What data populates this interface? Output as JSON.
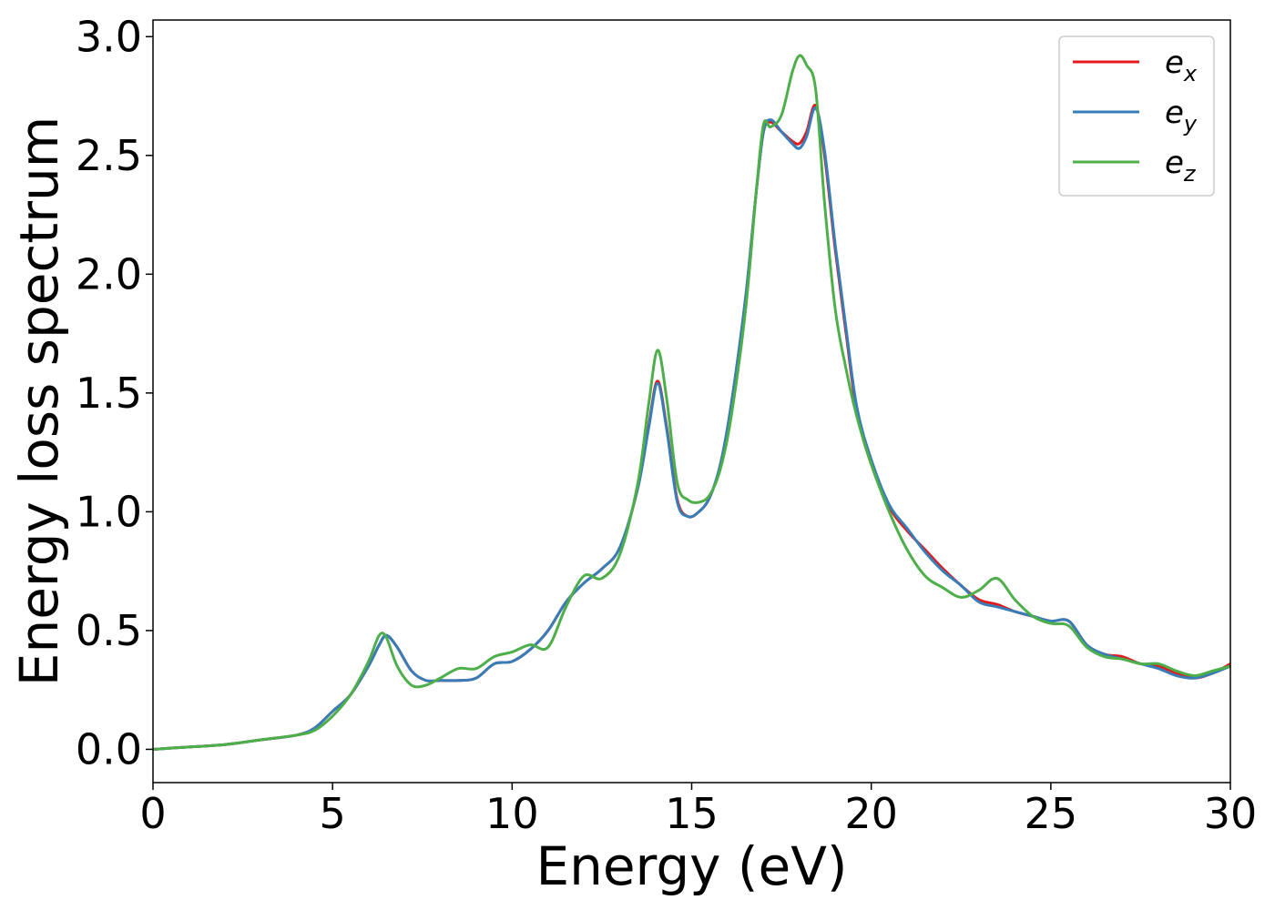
{
  "chart_data": {
    "type": "line",
    "title": "",
    "xlabel": "Energy (eV)",
    "ylabel": "Energy loss spectrum",
    "xlim": [
      0,
      30
    ],
    "ylim": [
      -0.14,
      3.07
    ],
    "xticks": [
      0,
      5,
      10,
      15,
      20,
      25,
      30
    ],
    "yticks": [
      0.0,
      0.5,
      1.0,
      1.5,
      2.0,
      2.5,
      3.0
    ],
    "xtick_labels": [
      "0",
      "5",
      "10",
      "15",
      "20",
      "25",
      "30"
    ],
    "ytick_labels": [
      "0.0",
      "0.5",
      "1.0",
      "1.5",
      "2.0",
      "2.5",
      "3.0"
    ],
    "grid": false,
    "legend_position": "top-right",
    "series": [
      {
        "name": "e_x",
        "legend_base": "e",
        "legend_sub": "x",
        "color": "#e41a1c",
        "x": [
          0,
          1,
          2,
          3,
          4,
          4.5,
          5,
          5.5,
          6,
          6.3,
          6.5,
          6.8,
          7.2,
          7.6,
          8,
          8.5,
          9,
          9.5,
          10,
          10.5,
          11,
          11.5,
          12,
          12.5,
          13,
          13.5,
          13.8,
          14.05,
          14.3,
          14.6,
          14.9,
          15.2,
          15.5,
          15.8,
          16.1,
          16.5,
          16.8,
          17.0,
          17.2,
          17.5,
          17.8,
          18.0,
          18.2,
          18.45,
          18.7,
          19.0,
          19.3,
          19.6,
          20,
          20.5,
          21,
          21.5,
          22,
          22.5,
          23,
          23.5,
          24,
          24.5,
          25,
          25.5,
          26,
          26.5,
          27,
          27.5,
          28,
          28.5,
          29,
          29.5,
          30
        ],
        "y": [
          0.0,
          0.01,
          0.02,
          0.04,
          0.06,
          0.09,
          0.16,
          0.23,
          0.35,
          0.44,
          0.48,
          0.43,
          0.33,
          0.29,
          0.29,
          0.29,
          0.3,
          0.36,
          0.37,
          0.42,
          0.5,
          0.62,
          0.7,
          0.76,
          0.85,
          1.1,
          1.36,
          1.55,
          1.36,
          1.05,
          0.98,
          1.0,
          1.06,
          1.2,
          1.45,
          1.9,
          2.35,
          2.6,
          2.64,
          2.6,
          2.56,
          2.55,
          2.6,
          2.71,
          2.5,
          2.1,
          1.75,
          1.42,
          1.2,
          1.02,
          0.92,
          0.84,
          0.76,
          0.69,
          0.63,
          0.61,
          0.58,
          0.56,
          0.54,
          0.54,
          0.44,
          0.4,
          0.39,
          0.36,
          0.35,
          0.32,
          0.3,
          0.32,
          0.36
        ]
      },
      {
        "name": "e_y",
        "legend_base": "e",
        "legend_sub": "y",
        "color": "#377eb8",
        "x": [
          0,
          1,
          2,
          3,
          4,
          4.5,
          5,
          5.5,
          6,
          6.3,
          6.5,
          6.8,
          7.2,
          7.6,
          8,
          8.5,
          9,
          9.5,
          10,
          10.5,
          11,
          11.5,
          12,
          12.5,
          13,
          13.5,
          13.8,
          14.05,
          14.3,
          14.6,
          14.9,
          15.2,
          15.5,
          15.8,
          16.1,
          16.5,
          16.8,
          17.0,
          17.2,
          17.5,
          17.8,
          18.0,
          18.2,
          18.45,
          18.7,
          19.0,
          19.3,
          19.6,
          20,
          20.5,
          21,
          21.5,
          22,
          22.5,
          23,
          23.5,
          24,
          24.5,
          25,
          25.5,
          26,
          26.5,
          27,
          27.5,
          28,
          28.5,
          29,
          29.5,
          30
        ],
        "y": [
          0.0,
          0.01,
          0.02,
          0.04,
          0.06,
          0.09,
          0.16,
          0.23,
          0.35,
          0.44,
          0.48,
          0.43,
          0.33,
          0.29,
          0.29,
          0.29,
          0.3,
          0.36,
          0.37,
          0.42,
          0.5,
          0.62,
          0.7,
          0.76,
          0.85,
          1.1,
          1.35,
          1.54,
          1.35,
          1.04,
          0.98,
          1.0,
          1.06,
          1.2,
          1.45,
          1.9,
          2.35,
          2.6,
          2.65,
          2.6,
          2.55,
          2.53,
          2.58,
          2.7,
          2.52,
          2.12,
          1.77,
          1.44,
          1.22,
          1.03,
          0.93,
          0.83,
          0.75,
          0.69,
          0.62,
          0.6,
          0.58,
          0.56,
          0.54,
          0.54,
          0.44,
          0.4,
          0.38,
          0.36,
          0.34,
          0.31,
          0.3,
          0.32,
          0.35
        ]
      },
      {
        "name": "e_z",
        "legend_base": "e",
        "legend_sub": "z",
        "color": "#4daf4a",
        "x": [
          0,
          1,
          2,
          3,
          4,
          4.5,
          5,
          5.5,
          6,
          6.3,
          6.5,
          6.8,
          7.2,
          7.6,
          8,
          8.5,
          9,
          9.5,
          10,
          10.5,
          11,
          11.5,
          12,
          12.5,
          13,
          13.5,
          13.8,
          14.05,
          14.3,
          14.6,
          14.9,
          15.2,
          15.5,
          15.8,
          16.1,
          16.5,
          16.8,
          17.0,
          17.2,
          17.5,
          17.8,
          18.0,
          18.2,
          18.45,
          18.7,
          19.0,
          19.3,
          19.6,
          20,
          20.5,
          21,
          21.5,
          22,
          22.5,
          23,
          23.5,
          24,
          24.5,
          25,
          25.5,
          26,
          26.5,
          27,
          27.5,
          28,
          28.5,
          29,
          29.5,
          30
        ],
        "y": [
          0.0,
          0.01,
          0.02,
          0.04,
          0.06,
          0.08,
          0.14,
          0.23,
          0.37,
          0.48,
          0.47,
          0.35,
          0.27,
          0.27,
          0.3,
          0.34,
          0.34,
          0.39,
          0.41,
          0.44,
          0.43,
          0.6,
          0.73,
          0.72,
          0.82,
          1.12,
          1.45,
          1.68,
          1.48,
          1.12,
          1.05,
          1.04,
          1.07,
          1.18,
          1.4,
          1.85,
          2.35,
          2.63,
          2.62,
          2.67,
          2.85,
          2.92,
          2.88,
          2.78,
          2.3,
          1.85,
          1.6,
          1.4,
          1.2,
          1.0,
          0.84,
          0.73,
          0.68,
          0.64,
          0.67,
          0.72,
          0.63,
          0.56,
          0.53,
          0.52,
          0.43,
          0.39,
          0.38,
          0.36,
          0.36,
          0.33,
          0.31,
          0.33,
          0.35
        ]
      }
    ]
  }
}
